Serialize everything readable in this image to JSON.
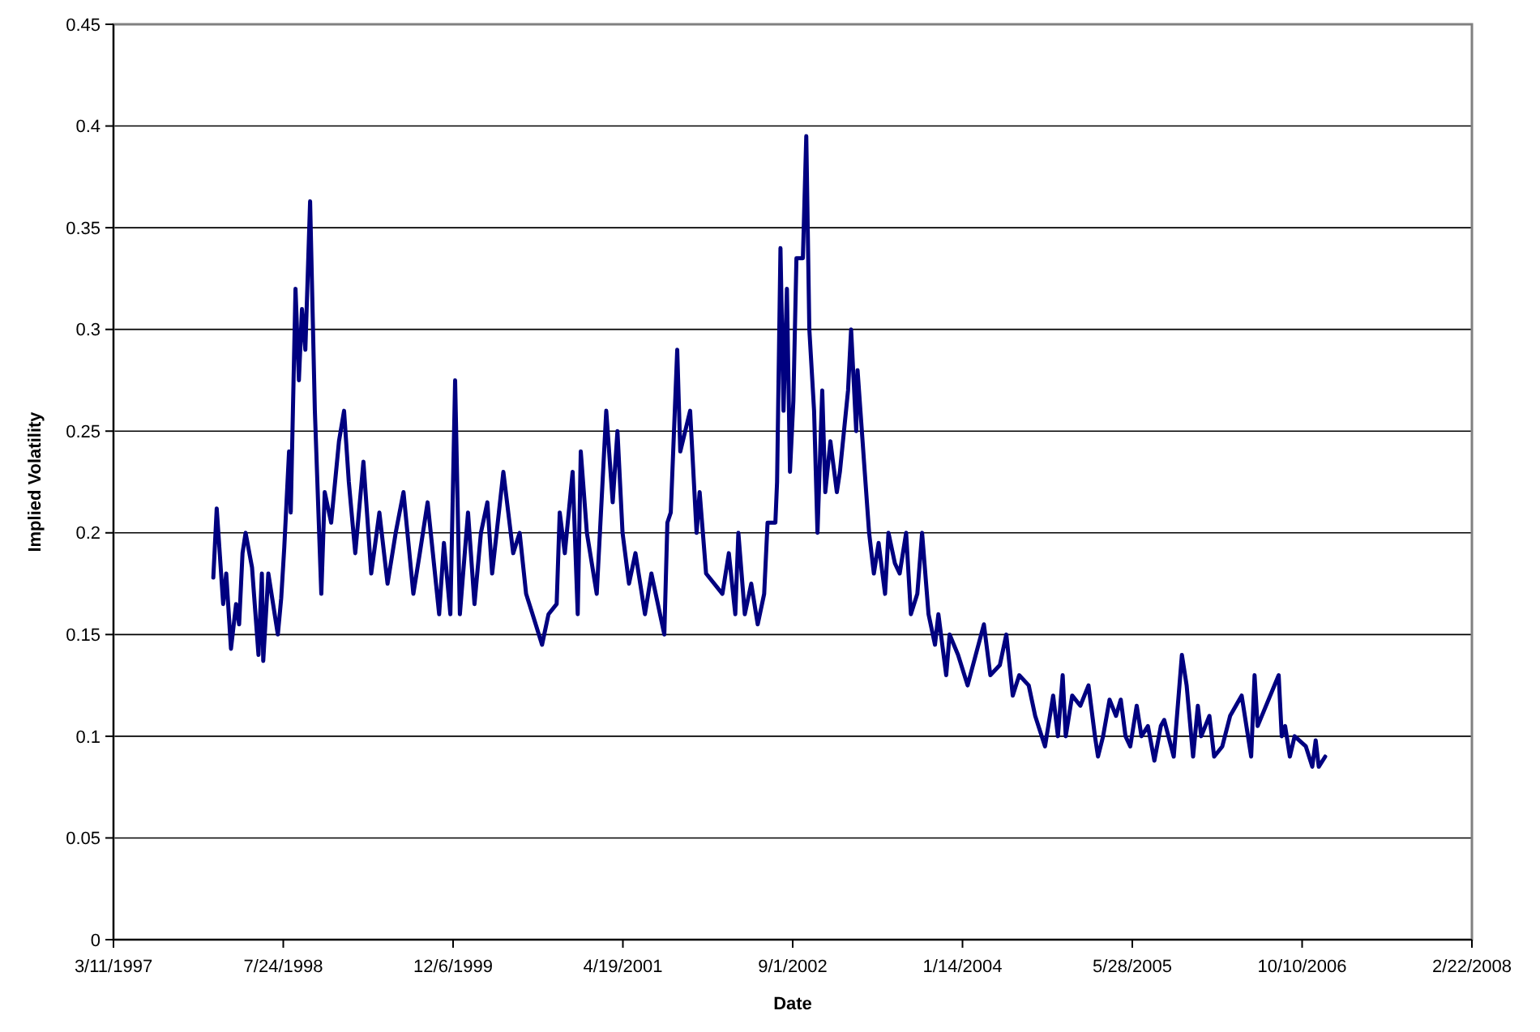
{
  "chart_data": {
    "type": "line",
    "xlabel": "Date",
    "ylabel": "Implied Volatility",
    "xlim": [
      "1997-03-11",
      "2008-02-22"
    ],
    "xticks": [
      {
        "value": "1997-03-11",
        "label": "3/11/1997"
      },
      {
        "value": "1998-07-24",
        "label": "7/24/1998"
      },
      {
        "value": "1999-12-06",
        "label": "12/6/1999"
      },
      {
        "value": "2001-04-19",
        "label": "4/19/2001"
      },
      {
        "value": "2002-09-01",
        "label": "9/1/2002"
      },
      {
        "value": "2004-01-14",
        "label": "1/14/2004"
      },
      {
        "value": "2005-05-28",
        "label": "5/28/2005"
      },
      {
        "value": "2006-10-10",
        "label": "10/10/2006"
      },
      {
        "value": "2008-02-22",
        "label": "2/22/2008"
      }
    ],
    "ylim": [
      0,
      0.45
    ],
    "yticks": [
      0,
      0.05,
      0.1,
      0.15,
      0.2,
      0.25,
      0.3,
      0.35,
      0.4,
      0.45
    ],
    "grid": "y",
    "marker": "none",
    "line_style": "solid",
    "series": [
      {
        "color": "#000080",
        "x": [
          "1997-12-30",
          "1998-01-09",
          "1998-01-28",
          "1998-02-06",
          "1998-02-20",
          "1998-03-07",
          "1998-03-16",
          "1998-03-26",
          "1998-04-04",
          "1998-04-23",
          "1998-05-12",
          "1998-05-22",
          "1998-05-26",
          "1998-06-10",
          "1998-07-08",
          "1998-07-18",
          "1998-07-27",
          "1998-08-10",
          "1998-08-15",
          "1998-08-29",
          "1998-09-08",
          "1998-09-17",
          "1998-09-27",
          "1998-10-11",
          "1998-10-25",
          "1998-11-13",
          "1998-11-23",
          "1998-12-12",
          "1999-01-04",
          "1999-01-19",
          "1999-02-02",
          "1999-02-21",
          "1999-03-17",
          "1999-04-09",
          "1999-05-03",
          "1999-05-27",
          "1999-06-20",
          "1999-07-13",
          "1999-08-11",
          "1999-08-30",
          "1999-09-22",
          "1999-10-26",
          "1999-11-09",
          "1999-11-28",
          "1999-12-12",
          "1999-12-26",
          "2000-01-19",
          "2000-02-07",
          "2000-02-26",
          "2000-03-16",
          "2000-03-30",
          "2000-05-02",
          "2000-05-31",
          "2000-06-19",
          "2000-07-08",
          "2000-07-27",
          "2000-08-24",
          "2000-09-12",
          "2000-10-06",
          "2000-10-15",
          "2000-10-30",
          "2000-11-22",
          "2000-12-07",
          "2000-12-16",
          "2001-01-03",
          "2001-02-01",
          "2001-03-01",
          "2001-03-20",
          "2001-04-03",
          "2001-04-18",
          "2001-05-07",
          "2001-05-26",
          "2001-06-23",
          "2001-07-12",
          "2001-08-19",
          "2001-08-28",
          "2001-09-07",
          "2001-09-26",
          "2001-10-05",
          "2001-11-03",
          "2001-11-22",
          "2001-12-01",
          "2001-12-20",
          "2002-02-06",
          "2002-02-25",
          "2002-03-16",
          "2002-03-25",
          "2002-04-13",
          "2002-05-02",
          "2002-05-21",
          "2002-06-09",
          "2002-06-19",
          "2002-07-12",
          "2002-07-17",
          "2002-07-27",
          "2002-08-05",
          "2002-08-15",
          "2002-08-24",
          "2002-09-03",
          "2002-09-12",
          "2002-10-01",
          "2002-10-11",
          "2002-10-20",
          "2002-11-03",
          "2002-11-13",
          "2002-11-27",
          "2002-12-06",
          "2002-12-21",
          "2003-01-09",
          "2003-01-18",
          "2003-02-11",
          "2003-02-20",
          "2003-03-07",
          "2003-03-11",
          "2003-03-30",
          "2003-04-14",
          "2003-04-28",
          "2003-05-12",
          "2003-05-31",
          "2003-06-10",
          "2003-06-29",
          "2003-07-13",
          "2003-08-01",
          "2003-08-15",
          "2003-09-03",
          "2003-09-17",
          "2003-10-06",
          "2003-10-25",
          "2003-11-04",
          "2003-11-27",
          "2003-12-07",
          "2004-01-01",
          "2004-01-29",
          "2004-02-22",
          "2004-03-17",
          "2004-04-05",
          "2004-05-03",
          "2004-05-22",
          "2004-06-10",
          "2004-06-29",
          "2004-07-27",
          "2004-08-15",
          "2004-09-13",
          "2004-10-07",
          "2004-10-21",
          "2004-11-04",
          "2004-11-13",
          "2004-12-02",
          "2004-12-26",
          "2005-01-19",
          "2005-02-07",
          "2005-02-16",
          "2005-03-03",
          "2005-03-22",
          "2005-04-10",
          "2005-04-24",
          "2005-05-08",
          "2005-05-22",
          "2005-06-10",
          "2005-06-24",
          "2005-07-13",
          "2005-08-01",
          "2005-08-20",
          "2005-08-30",
          "2005-09-27",
          "2005-10-21",
          "2005-11-04",
          "2005-11-23",
          "2005-12-07",
          "2005-12-17",
          "2006-01-10",
          "2006-01-24",
          "2006-02-17",
          "2006-03-12",
          "2006-04-15",
          "2006-05-13",
          "2006-05-23",
          "2006-06-01",
          "2006-08-02",
          "2006-08-11",
          "2006-08-21",
          "2006-09-04",
          "2006-09-18",
          "2006-10-21",
          "2006-11-09",
          "2006-11-19",
          "2006-11-28",
          "2006-12-17"
        ],
        "values": [
          0.178,
          0.212,
          0.165,
          0.18,
          0.143,
          0.165,
          0.155,
          0.19,
          0.2,
          0.183,
          0.14,
          0.18,
          0.137,
          0.18,
          0.15,
          0.168,
          0.193,
          0.24,
          0.21,
          0.32,
          0.275,
          0.31,
          0.29,
          0.363,
          0.26,
          0.17,
          0.22,
          0.205,
          0.245,
          0.26,
          0.225,
          0.19,
          0.235,
          0.18,
          0.21,
          0.175,
          0.2,
          0.22,
          0.17,
          0.19,
          0.215,
          0.16,
          0.195,
          0.16,
          0.275,
          0.16,
          0.21,
          0.165,
          0.2,
          0.215,
          0.18,
          0.23,
          0.19,
          0.2,
          0.17,
          0.16,
          0.145,
          0.16,
          0.165,
          0.21,
          0.19,
          0.23,
          0.16,
          0.24,
          0.2,
          0.17,
          0.26,
          0.215,
          0.25,
          0.2,
          0.175,
          0.19,
          0.16,
          0.18,
          0.15,
          0.205,
          0.21,
          0.29,
          0.24,
          0.26,
          0.2,
          0.22,
          0.18,
          0.17,
          0.19,
          0.16,
          0.2,
          0.16,
          0.175,
          0.155,
          0.17,
          0.205,
          0.205,
          0.225,
          0.34,
          0.26,
          0.32,
          0.23,
          0.265,
          0.335,
          0.335,
          0.395,
          0.3,
          0.26,
          0.2,
          0.27,
          0.22,
          0.245,
          0.22,
          0.23,
          0.27,
          0.3,
          0.25,
          0.28,
          0.235,
          0.2,
          0.18,
          0.195,
          0.17,
          0.2,
          0.185,
          0.18,
          0.2,
          0.16,
          0.17,
          0.2,
          0.16,
          0.145,
          0.16,
          0.13,
          0.15,
          0.14,
          0.125,
          0.14,
          0.155,
          0.13,
          0.135,
          0.15,
          0.12,
          0.13,
          0.125,
          0.11,
          0.095,
          0.12,
          0.1,
          0.13,
          0.1,
          0.12,
          0.115,
          0.125,
          0.1,
          0.09,
          0.1,
          0.118,
          0.11,
          0.118,
          0.1,
          0.095,
          0.115,
          0.1,
          0.105,
          0.088,
          0.105,
          0.108,
          0.09,
          0.14,
          0.125,
          0.09,
          0.115,
          0.1,
          0.11,
          0.09,
          0.095,
          0.11,
          0.12,
          0.09,
          0.13,
          0.105,
          0.13,
          0.1,
          0.105,
          0.09,
          0.1,
          0.095,
          0.085,
          0.098,
          0.085,
          0.09
        ]
      }
    ]
  }
}
